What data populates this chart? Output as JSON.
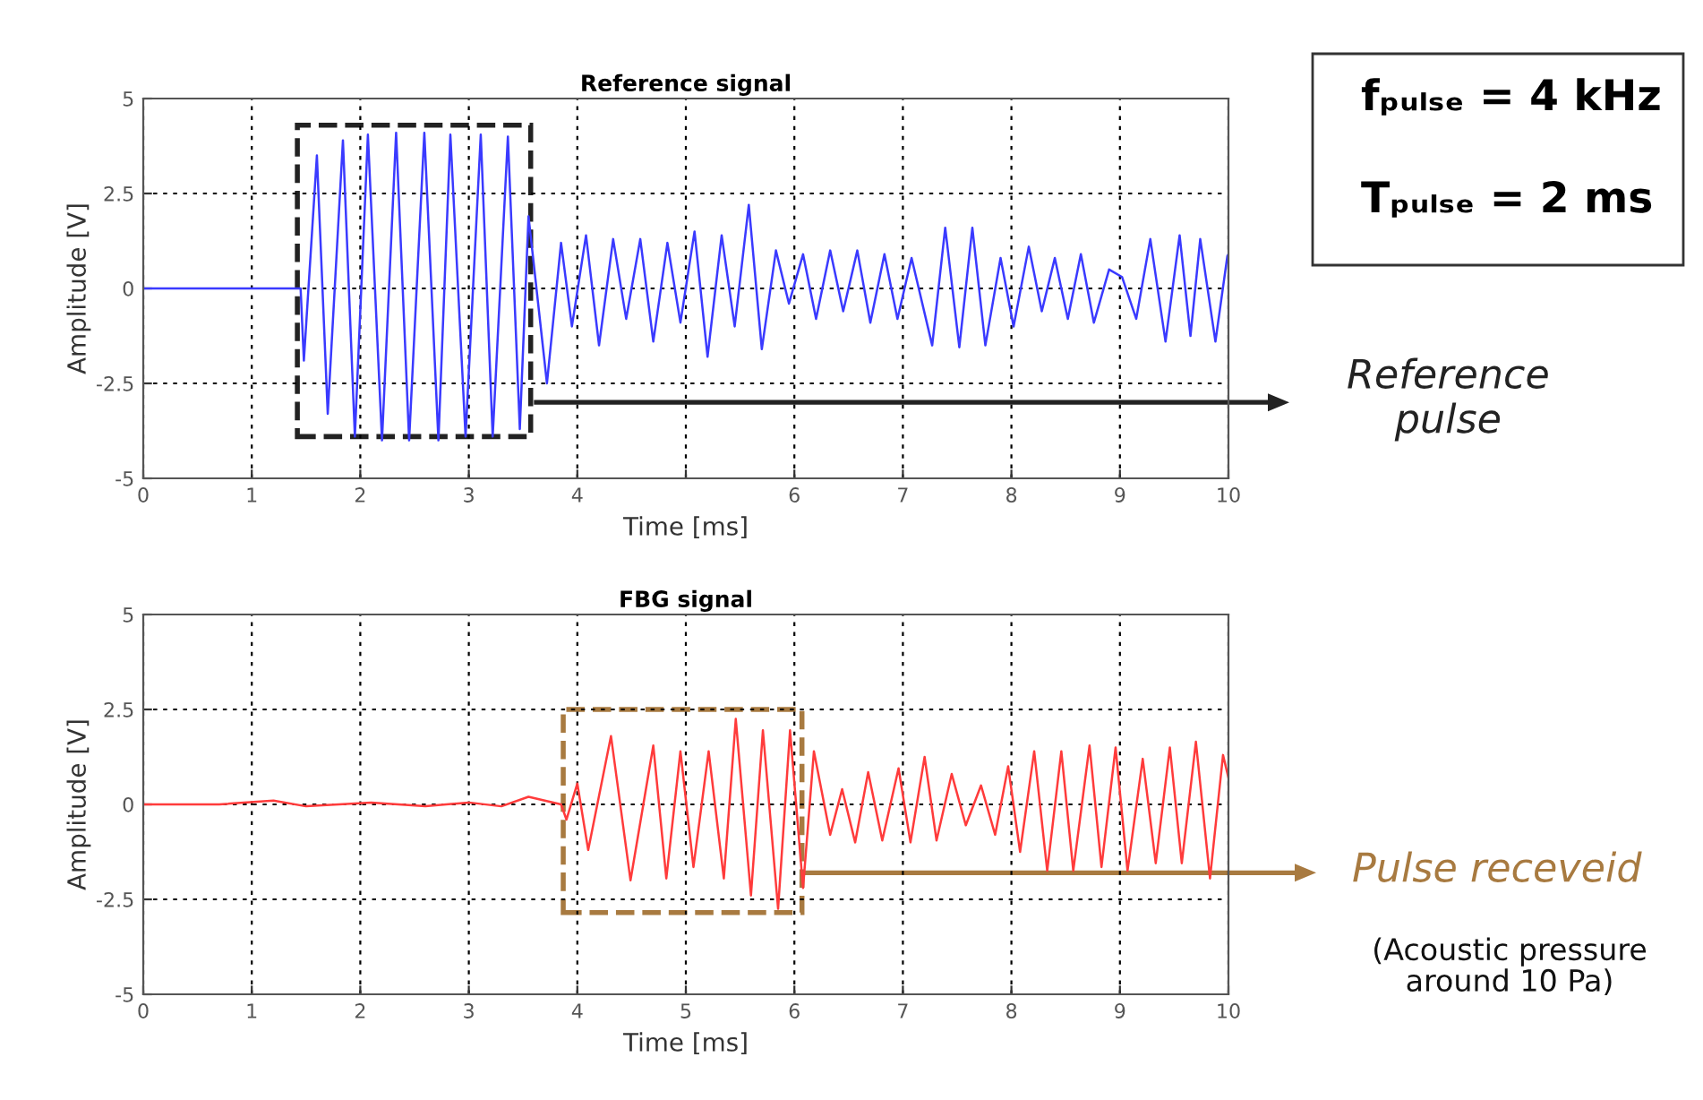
{
  "chart_data": [
    {
      "type": "line",
      "title": "Reference signal",
      "xlabel": "Time [ms]",
      "ylabel": "Amplitude [V]",
      "xlim": [
        0,
        10
      ],
      "ylim": [
        -5,
        5
      ],
      "xticks": [
        0,
        1,
        2,
        3,
        4,
        {
          "value": 5,
          "label": null
        },
        6,
        7,
        8,
        9,
        10
      ],
      "yticks": [
        -5,
        -2.5,
        0,
        2.5,
        5
      ],
      "grid": true,
      "annotations": [
        "fₚᵤₗₛₑ = 4 kHz",
        "Tₚᵤₗₛₑ = 2 ms",
        "Reference\npulse"
      ],
      "series": [
        {
          "color": "#3a3aff",
          "x": [
            0,
            1.45,
            1.48,
            1.6,
            1.7,
            1.84,
            1.95,
            2.07,
            2.2,
            2.33,
            2.45,
            2.59,
            2.72,
            2.83,
            2.97,
            3.11,
            3.22,
            3.36,
            3.47,
            3.55,
            3.72,
            3.85,
            3.95,
            4.08,
            4.2,
            4.33,
            4.45,
            4.58,
            4.7,
            4.83,
            4.95,
            5.08,
            5.2,
            5.33,
            5.45,
            5.58,
            5.7,
            5.83,
            5.95,
            6.08,
            6.2,
            6.33,
            6.45,
            6.58,
            6.7,
            6.83,
            6.95,
            7.08,
            7.27,
            7.39,
            7.52,
            7.64,
            7.76,
            7.9,
            8.02,
            8.16,
            8.28,
            8.4,
            8.52,
            8.64,
            8.76,
            8.9,
            9.02,
            9.15,
            9.28,
            9.42,
            9.55,
            9.65,
            9.74,
            9.88,
            9.99,
            10
          ],
          "values": [
            0,
            0,
            -1.9,
            3.5,
            -3.3,
            3.9,
            -3.9,
            4.05,
            -4.0,
            4.1,
            -4.0,
            4.1,
            -4.0,
            4.05,
            -3.9,
            4.05,
            -3.9,
            4.0,
            -3.7,
            1.9,
            -2.5,
            1.2,
            -1.0,
            1.4,
            -1.5,
            1.3,
            -0.8,
            1.3,
            -1.4,
            1.2,
            -0.9,
            1.5,
            -1.8,
            1.4,
            -1.0,
            2.2,
            -1.6,
            1.0,
            -0.4,
            0.9,
            -0.8,
            1.0,
            -0.6,
            1.0,
            -0.9,
            0.9,
            -0.8,
            0.8,
            -1.5,
            1.6,
            -1.55,
            1.6,
            -1.5,
            0.8,
            -1.0,
            1.1,
            -0.6,
            0.8,
            -0.8,
            0.9,
            -0.9,
            0.5,
            0.3,
            -0.8,
            1.3,
            -1.4,
            1.4,
            -1.25,
            1.3,
            -1.4,
            0.85,
            0.9
          ]
        }
      ]
    },
    {
      "type": "line",
      "title": "FBG signal",
      "xlabel": "Time [ms]",
      "ylabel": "Amplitude [V]",
      "xlim": [
        0,
        10
      ],
      "ylim": [
        -5,
        5
      ],
      "xticks": [
        0,
        1,
        2,
        3,
        4,
        5,
        6,
        7,
        8,
        9,
        10
      ],
      "yticks": [
        -5,
        -2.5,
        0,
        2.5,
        5
      ],
      "grid": true,
      "annotations": [
        "Pulse receveid",
        "(Acoustic pressure\naround 10 Pa)"
      ],
      "series": [
        {
          "color": "#ff3b3b",
          "x": [
            0,
            0.7,
            1.2,
            1.5,
            2.1,
            2.6,
            3.0,
            3.3,
            3.55,
            3.85,
            3.9,
            4.0,
            4.1,
            4.31,
            4.49,
            4.7,
            4.82,
            4.95,
            5.07,
            5.21,
            5.35,
            5.46,
            5.6,
            5.71,
            5.85,
            5.96,
            6.08,
            6.18,
            6.33,
            6.44,
            6.56,
            6.68,
            6.81,
            6.96,
            7.07,
            7.2,
            7.31,
            7.45,
            7.58,
            7.72,
            7.85,
            7.97,
            8.08,
            8.21,
            8.33,
            8.46,
            8.57,
            8.72,
            8.83,
            8.96,
            9.07,
            9.21,
            9.33,
            9.46,
            9.57,
            9.7,
            9.83,
            9.95,
            10
          ],
          "values": [
            0,
            0,
            0.1,
            -0.05,
            0.05,
            -0.05,
            0.05,
            -0.05,
            0.2,
            0,
            -0.4,
            0.55,
            -1.2,
            1.8,
            -2.0,
            1.55,
            -1.95,
            1.4,
            -1.65,
            1.4,
            -1.95,
            2.25,
            -2.4,
            1.95,
            -2.75,
            1.95,
            -2.2,
            1.4,
            -0.8,
            0.4,
            -1.0,
            0.85,
            -0.95,
            0.95,
            -1.0,
            1.25,
            -0.95,
            0.8,
            -0.55,
            0.5,
            -0.8,
            1.0,
            -1.25,
            1.4,
            -1.75,
            1.4,
            -1.75,
            1.55,
            -1.65,
            1.5,
            -1.75,
            1.2,
            -1.55,
            1.5,
            -1.55,
            1.65,
            -1.95,
            1.3,
            0.7
          ]
        }
      ]
    }
  ]
}
